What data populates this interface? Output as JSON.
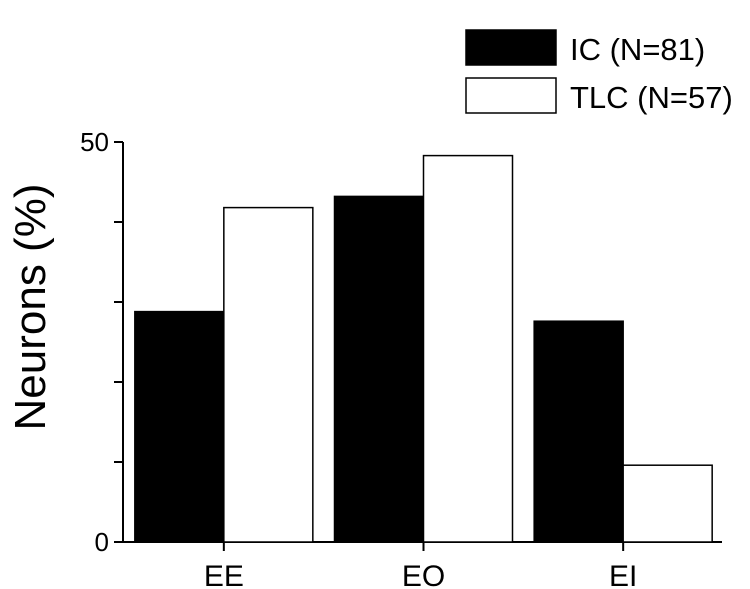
{
  "chart_data": {
    "type": "bar",
    "ylabel": "Neurons (%)",
    "ylim": [
      0,
      50
    ],
    "yticks": [
      0,
      10,
      20,
      30,
      40,
      50
    ],
    "ytick_labels": [
      "0",
      "",
      "",
      "",
      "",
      "50"
    ],
    "categories": [
      "EE",
      "EO",
      "EI"
    ],
    "series": [
      {
        "name": "IC (N=81)",
        "values": [
          28.8,
          43.2,
          27.6
        ],
        "color": "#000000"
      },
      {
        "name": "TLC (N=57)",
        "values": [
          41.8,
          48.3,
          9.6
        ],
        "color": "#ffffff"
      }
    ],
    "legend_position": "top-right",
    "grid": false
  }
}
